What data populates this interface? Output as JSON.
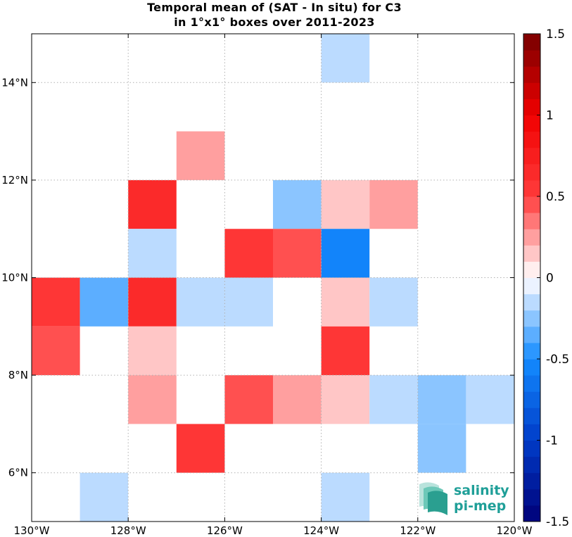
{
  "chart_data": {
    "type": "heatmap",
    "title": "Temporal mean of (SAT - In situ) for C3",
    "subtitle": "in 1°x1° boxes over 2011-2023",
    "xlim": [
      -130,
      -120
    ],
    "ylim": [
      5,
      15
    ],
    "grid": true,
    "x_ticks": [
      {
        "value": -130,
        "label": "130°W"
      },
      {
        "value": -128,
        "label": "128°W"
      },
      {
        "value": -126,
        "label": "126°W"
      },
      {
        "value": -124,
        "label": "124°W"
      },
      {
        "value": -122,
        "label": "122°W"
      },
      {
        "value": -120,
        "label": "120°W"
      }
    ],
    "y_ticks": [
      {
        "value": 6,
        "label": "6°N"
      },
      {
        "value": 8,
        "label": "8°N"
      },
      {
        "value": 10,
        "label": "10°N"
      },
      {
        "value": 12,
        "label": "12°N"
      },
      {
        "value": 14,
        "label": "14°N"
      }
    ],
    "colorbar": {
      "min": -1.5,
      "max": 1.5,
      "levels": 30,
      "ticks": [
        {
          "value": 1.5,
          "label": "1.5"
        },
        {
          "value": 1,
          "label": "1"
        },
        {
          "value": 0.5,
          "label": "0.5"
        },
        {
          "value": 0,
          "label": "0"
        },
        {
          "value": -0.5,
          "label": "-0.5"
        },
        {
          "value": -1,
          "label": "-1"
        },
        {
          "value": -1.5,
          "label": "-1.5"
        }
      ]
    },
    "cells": [
      {
        "lon": -124,
        "lat": 14,
        "value": -0.15
      },
      {
        "lon": -127,
        "lat": 12,
        "value": 0.25
      },
      {
        "lon": -128,
        "lat": 11,
        "value": 0.65
      },
      {
        "lon": -125,
        "lat": 11,
        "value": -0.25
      },
      {
        "lon": -124,
        "lat": 11,
        "value": 0.15
      },
      {
        "lon": -123,
        "lat": 11,
        "value": 0.25
      },
      {
        "lon": -128,
        "lat": 10,
        "value": -0.15
      },
      {
        "lon": -126,
        "lat": 10,
        "value": 0.55
      },
      {
        "lon": -125,
        "lat": 10,
        "value": 0.45
      },
      {
        "lon": -124,
        "lat": 10,
        "value": -0.55
      },
      {
        "lon": -130,
        "lat": 9,
        "value": 0.55
      },
      {
        "lon": -129,
        "lat": 9,
        "value": -0.35
      },
      {
        "lon": -128,
        "lat": 9,
        "value": 0.65
      },
      {
        "lon": -127,
        "lat": 9,
        "value": -0.15
      },
      {
        "lon": -126,
        "lat": 9,
        "value": -0.15
      },
      {
        "lon": -124,
        "lat": 9,
        "value": 0.15
      },
      {
        "lon": -123,
        "lat": 9,
        "value": -0.15
      },
      {
        "lon": -130,
        "lat": 8,
        "value": 0.45
      },
      {
        "lon": -128,
        "lat": 8,
        "value": 0.15
      },
      {
        "lon": -124,
        "lat": 8,
        "value": 0.55
      },
      {
        "lon": -128,
        "lat": 7,
        "value": 0.25
      },
      {
        "lon": -126,
        "lat": 7,
        "value": 0.45
      },
      {
        "lon": -125,
        "lat": 7,
        "value": 0.25
      },
      {
        "lon": -124,
        "lat": 7,
        "value": 0.15
      },
      {
        "lon": -123,
        "lat": 7,
        "value": -0.15
      },
      {
        "lon": -122,
        "lat": 7,
        "value": -0.25
      },
      {
        "lon": -121,
        "lat": 7,
        "value": -0.15
      },
      {
        "lon": -122,
        "lat": 6,
        "value": -0.25
      },
      {
        "lon": -127,
        "lat": 6,
        "value": 0.55
      },
      {
        "lon": -129,
        "lat": 5,
        "value": -0.15
      },
      {
        "lon": -124,
        "lat": 5,
        "value": -0.15
      }
    ]
  },
  "logo": {
    "line1": "salinity",
    "line2": "pi-mep",
    "color": "#1f9f98"
  }
}
